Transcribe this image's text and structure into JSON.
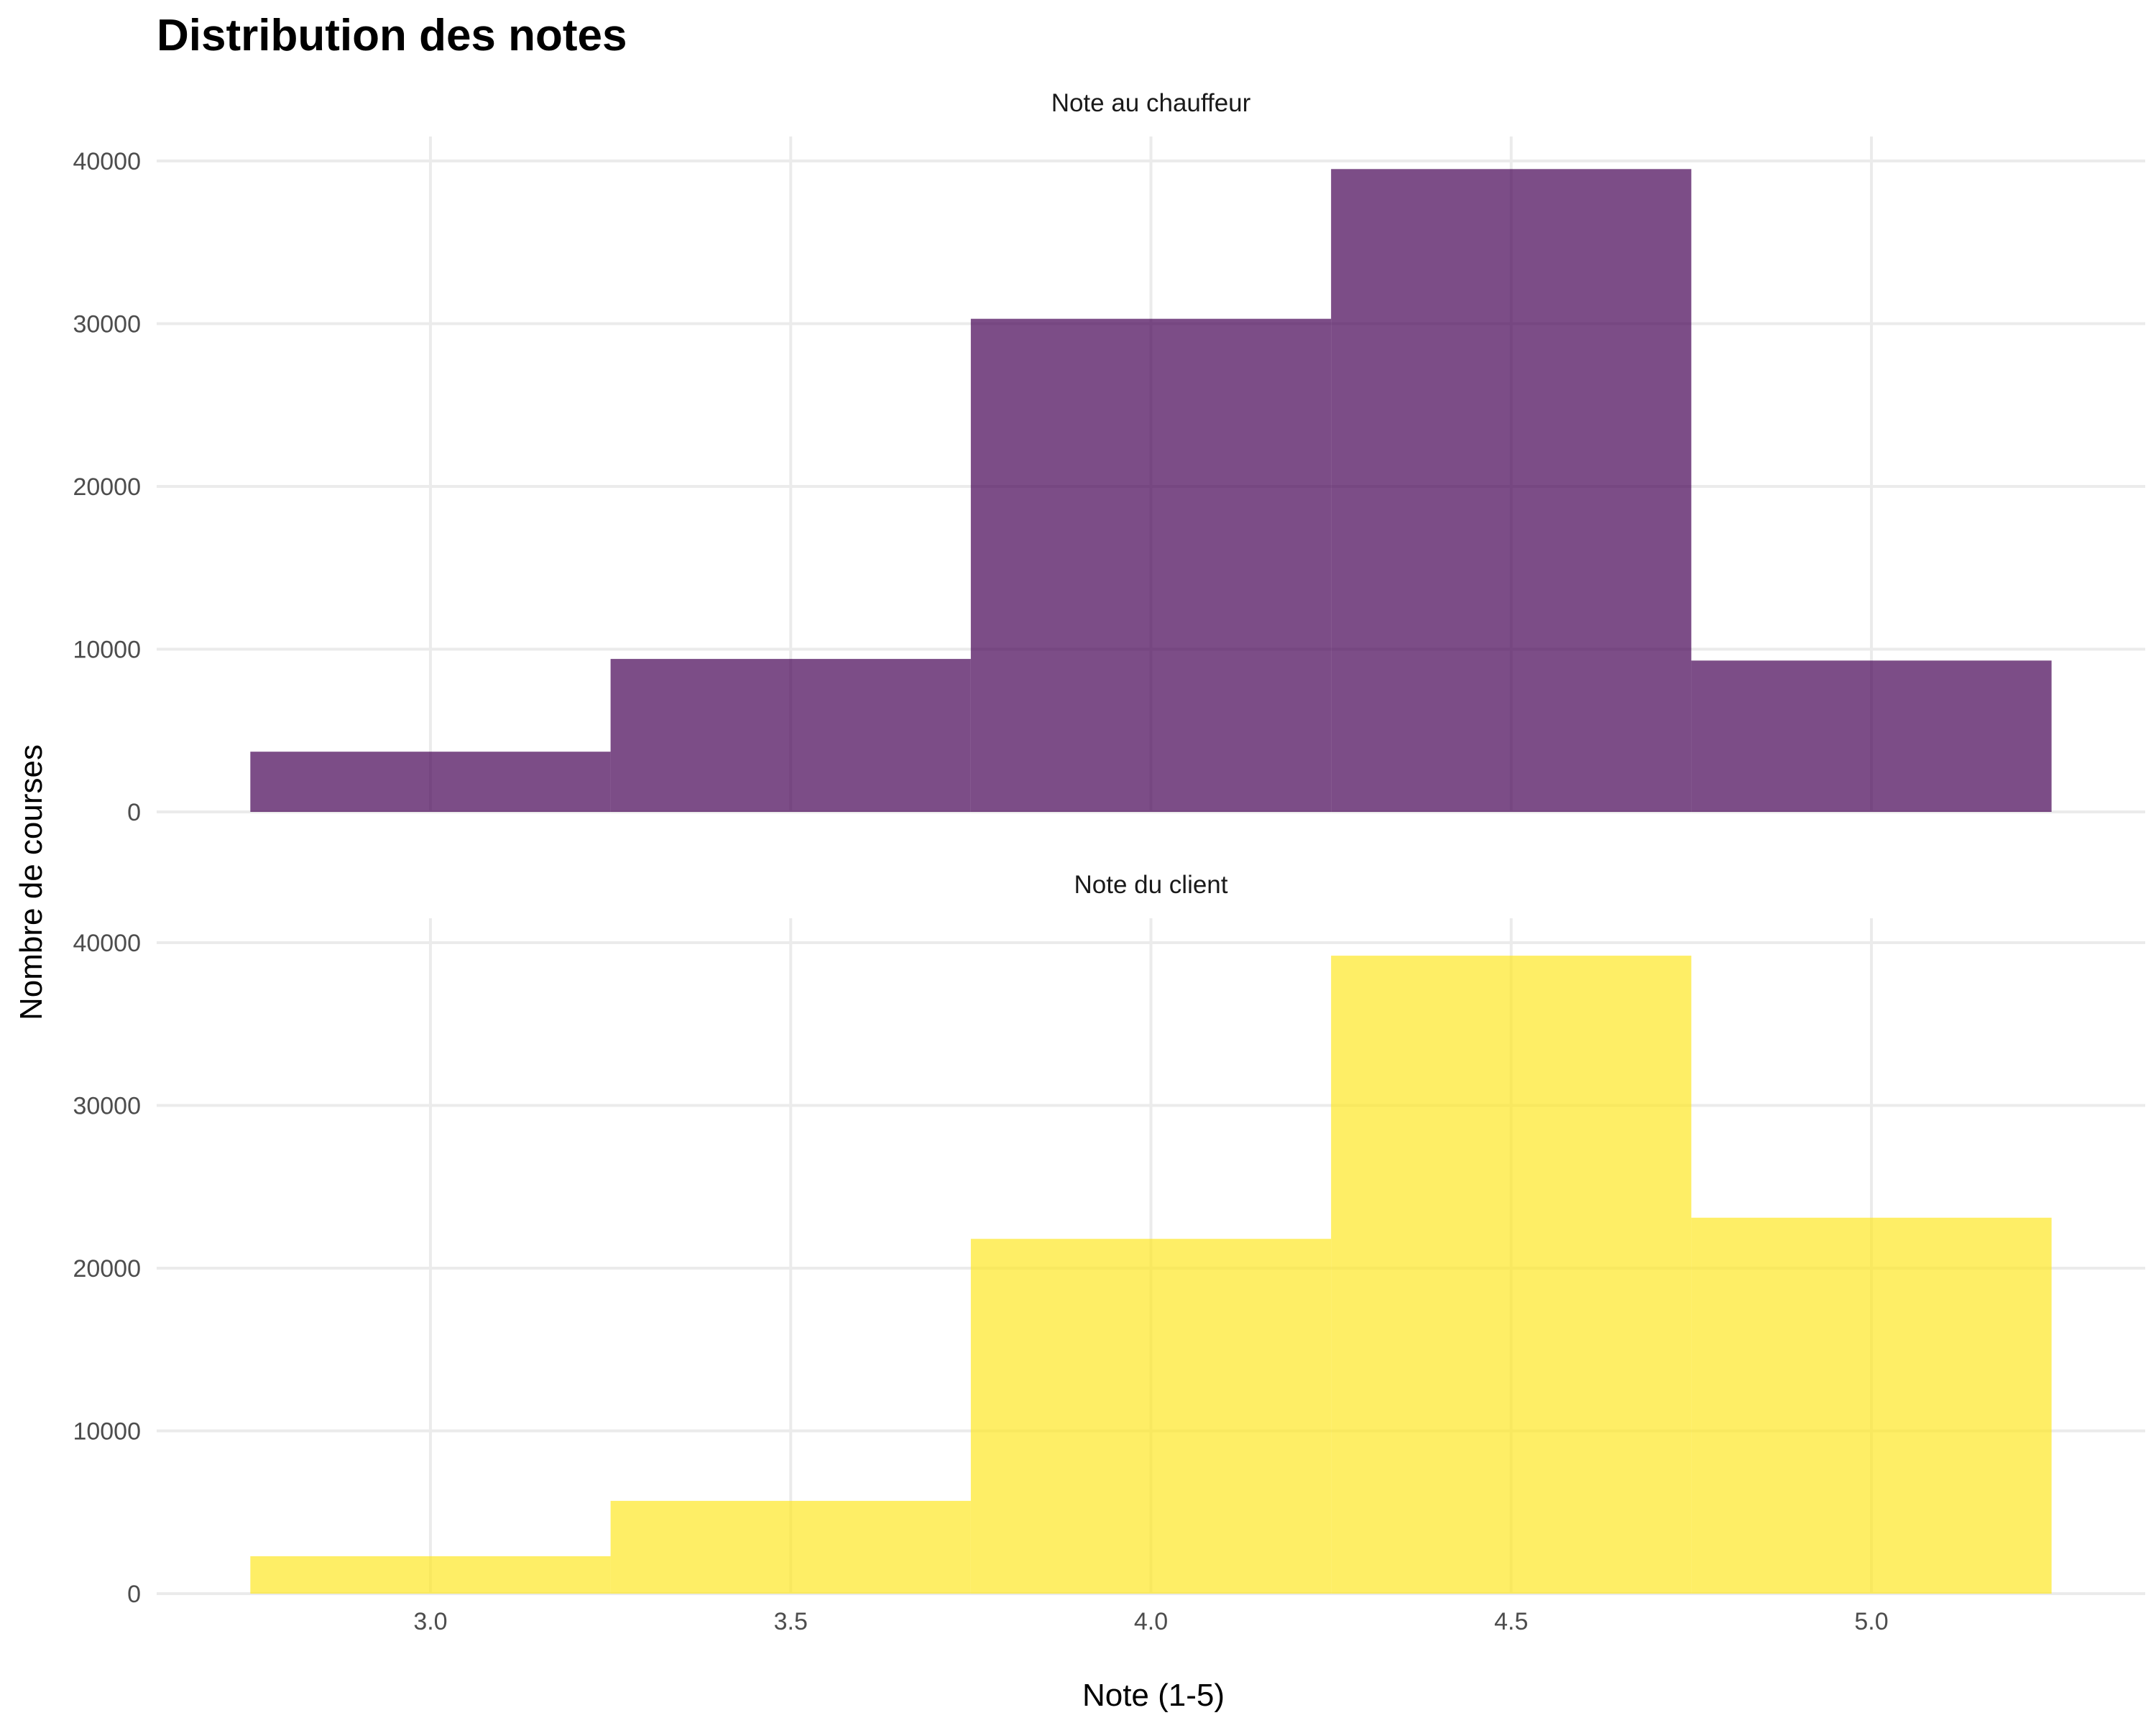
{
  "chart_data": {
    "type": "bar",
    "title": "Distribution des notes",
    "xlabel": "Note (1-5)",
    "ylabel": "Nombre de courses",
    "x_ticks": [
      "3.0",
      "3.5",
      "4.0",
      "4.5",
      "5.0"
    ],
    "x_tick_values": [
      3.0,
      3.5,
      4.0,
      4.5,
      5.0
    ],
    "y_ticks": [
      "0",
      "10000",
      "20000",
      "30000",
      "40000"
    ],
    "y_tick_values": [
      0,
      10000,
      20000,
      30000,
      40000
    ],
    "xlim": [
      2.62,
      5.38
    ],
    "ylim": [
      0,
      41500
    ],
    "bin_width": 0.5,
    "bin_centers": [
      3.0,
      3.5,
      4.0,
      4.5,
      5.0
    ],
    "grid": true,
    "legend": "none",
    "panels": [
      {
        "name": "Note au chauffeur",
        "color": "#440154",
        "values": [
          3700,
          9400,
          30300,
          39500,
          9300
        ]
      },
      {
        "name": "Note du client",
        "color": "#FDE725",
        "values": [
          2300,
          5700,
          21800,
          39200,
          23100
        ]
      }
    ]
  }
}
